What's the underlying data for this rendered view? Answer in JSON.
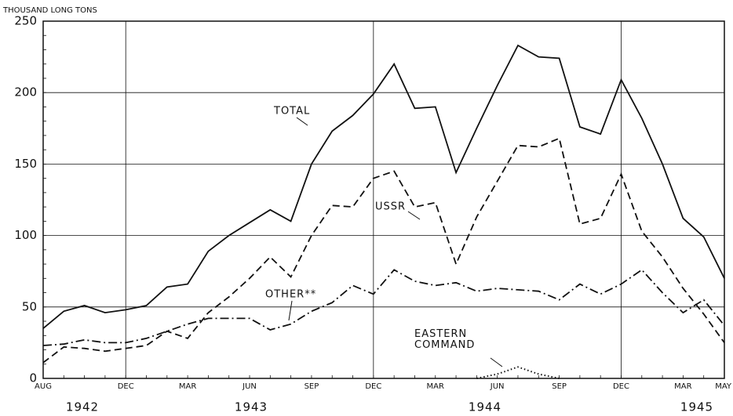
{
  "chart_data": {
    "type": "line",
    "y_axis_label": "THOUSAND LONG TONS",
    "categories": [
      "AUG",
      null,
      null,
      null,
      "DEC",
      null,
      null,
      "MAR",
      null,
      null,
      "JUN",
      null,
      null,
      "SEP",
      null,
      null,
      "DEC",
      null,
      null,
      "MAR",
      null,
      null,
      "JUN",
      null,
      null,
      "SEP",
      null,
      null,
      "DEC",
      null,
      null,
      "MAR",
      null,
      "MAY"
    ],
    "years": [
      "1942",
      "1943",
      "1944",
      "1945"
    ],
    "series": [
      {
        "name": "TOTAL",
        "color": "#111111",
        "style": "solid",
        "values": [
          35,
          47,
          51,
          46,
          48,
          51,
          64,
          66,
          89,
          100,
          109,
          118,
          110,
          150,
          173,
          184,
          199,
          220,
          189,
          190,
          144,
          175,
          205,
          233,
          225,
          224,
          176,
          171,
          209,
          182,
          150,
          112,
          99,
          70
        ]
      },
      {
        "name": "USSR",
        "color": "#111111",
        "style": "dashed",
        "values": [
          11,
          22,
          21,
          19,
          21,
          23,
          33,
          28,
          46,
          57,
          70,
          85,
          71,
          100,
          121,
          120,
          140,
          145,
          120,
          123,
          80,
          113,
          138,
          163,
          162,
          168,
          108,
          112,
          143,
          103,
          85,
          63,
          45,
          25
        ]
      },
      {
        "name": "OTHER**",
        "color": "#111111",
        "style": "dashdot",
        "values": [
          23,
          24,
          27,
          25,
          25,
          28,
          33,
          38,
          42,
          42,
          42,
          34,
          38,
          47,
          53,
          65,
          59,
          76,
          68,
          65,
          67,
          61,
          63,
          62,
          61,
          55,
          66,
          59,
          66,
          76,
          60,
          46,
          55,
          37
        ]
      },
      {
        "name": "EASTERN COMMAND",
        "color": "#111111",
        "style": "dotted",
        "values": [
          null,
          null,
          null,
          null,
          null,
          null,
          null,
          null,
          null,
          null,
          null,
          null,
          null,
          null,
          null,
          null,
          null,
          null,
          null,
          null,
          null,
          0,
          3,
          8,
          3,
          0,
          null,
          null,
          null,
          null,
          null,
          null,
          null,
          null
        ]
      }
    ],
    "ylim": [
      0,
      250
    ],
    "yticks": [
      0,
      50,
      100,
      150,
      200,
      250
    ],
    "grid": true
  }
}
